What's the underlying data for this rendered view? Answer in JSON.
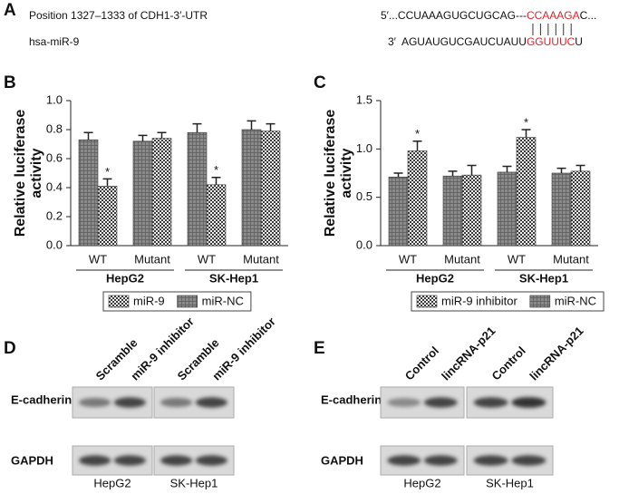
{
  "panel_a": {
    "label": "A",
    "site": "Position 1327–1333 of CDH1-3′-UTR",
    "mirna": "hsa-miR-9",
    "utr_seq": [
      "5′...CCUAAAGUGCUGCAG",
      "---",
      "CCAAAGA",
      "C..."
    ],
    "mirna_seq": [
      "3′",
      "AGUAUGUCGAUCUAUU",
      "GGUUUC",
      "U"
    ],
    "highlight_color": "#e0242b"
  },
  "chart_data": [
    {
      "type": "bar",
      "label": "B",
      "ylabel": [
        "Relative luciferase",
        "activity"
      ],
      "categories": [
        "WT",
        "Mutant",
        "WT",
        "Mutant"
      ],
      "groups": [
        "HepG2",
        "SK-Hep1"
      ],
      "ylim": [
        0,
        1
      ],
      "yticks": [
        {
          "value": 0,
          "label": "0.0"
        },
        0.2,
        0.4,
        0.6,
        0.8,
        {
          "value": 1,
          "label": "1.0"
        }
      ],
      "legend": "bottom",
      "series": [
        {
          "name": "miR-9",
          "color": "#3a3a3a",
          "values": [
            0.41,
            0.74,
            0.42,
            0.79
          ],
          "errors": [
            0.05,
            0.04,
            0.05,
            0.05
          ],
          "markers": [
            "*",
            null,
            "*",
            null
          ]
        },
        {
          "name": "miR-NC",
          "color": "#8a8a8a",
          "values": [
            0.73,
            0.72,
            0.78,
            0.8
          ],
          "errors": [
            0.05,
            0.04,
            0.06,
            0.06
          ],
          "markers": [
            null,
            null,
            null,
            null
          ]
        }
      ]
    },
    {
      "type": "bar",
      "label": "C",
      "ylabel": [
        "Relative luciferase",
        "activity"
      ],
      "categories": [
        "WT",
        "Mutant",
        "WT",
        "Mutant"
      ],
      "groups": [
        "HepG2",
        "SK-Hep1"
      ],
      "ylim": [
        0,
        1.5
      ],
      "yticks": [
        {
          "value": 0,
          "label": "0.0"
        },
        0.5,
        {
          "value": 1,
          "label": "1.0"
        },
        1.5
      ],
      "legend": "bottom",
      "series": [
        {
          "name": "miR-9 inhibitor",
          "color": "#3a3a3a",
          "values": [
            0.98,
            0.73,
            1.12,
            0.77
          ],
          "errors": [
            0.1,
            0.1,
            0.08,
            0.06
          ],
          "markers": [
            "*",
            null,
            "*",
            null
          ]
        },
        {
          "name": "miR-NC",
          "color": "#8a8a8a",
          "values": [
            0.71,
            0.72,
            0.76,
            0.75
          ],
          "errors": [
            0.04,
            0.05,
            0.06,
            0.05
          ],
          "markers": [
            null,
            null,
            null,
            null
          ]
        }
      ]
    }
  ],
  "blots": [
    {
      "label": "D",
      "lanes": [
        "Scramble",
        "miR-9 inhibitor",
        "Scramble",
        "miR-9 inhibitor"
      ],
      "rows": [
        "E-cadherin",
        "GAPDH"
      ],
      "cell_lines": [
        "HepG2",
        "SK-Hep1"
      ]
    },
    {
      "label": "E",
      "lanes": [
        "Control",
        "lincRNA-p21",
        "Control",
        "lincRNA-p21"
      ],
      "rows": [
        "E-cadherin",
        "GAPDH"
      ],
      "cell_lines": [
        "HepG2",
        "SK-Hep1"
      ]
    }
  ]
}
